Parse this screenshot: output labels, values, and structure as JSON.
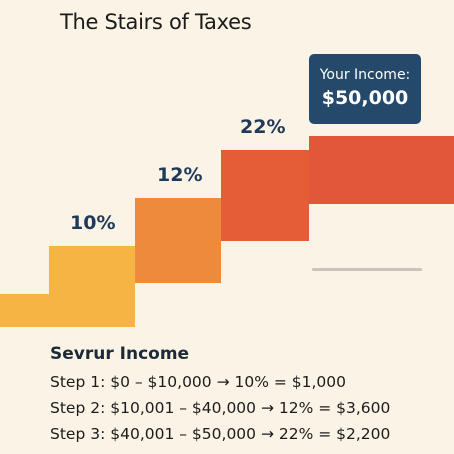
{
  "title": "The Stairs of Taxes",
  "income_box": {
    "label": "Your Income:",
    "value": "$50,000"
  },
  "brackets": [
    {
      "rate": "10%",
      "color": "#f6b445"
    },
    {
      "rate": "12%",
      "color": "#ee8a3c"
    },
    {
      "rate": "22%",
      "color": "#e55d37"
    }
  ],
  "income_step_color": "#e2573a",
  "summary": {
    "title": "Sevrur Income",
    "lines": [
      "Step 1: $0 – $10,000 → 10% = $1,000",
      "Step 2: $10,001 – $40,000 → 12% = $3,600",
      "Step 3: $40,001 – $50,000 → 22% = $2,200"
    ]
  }
}
